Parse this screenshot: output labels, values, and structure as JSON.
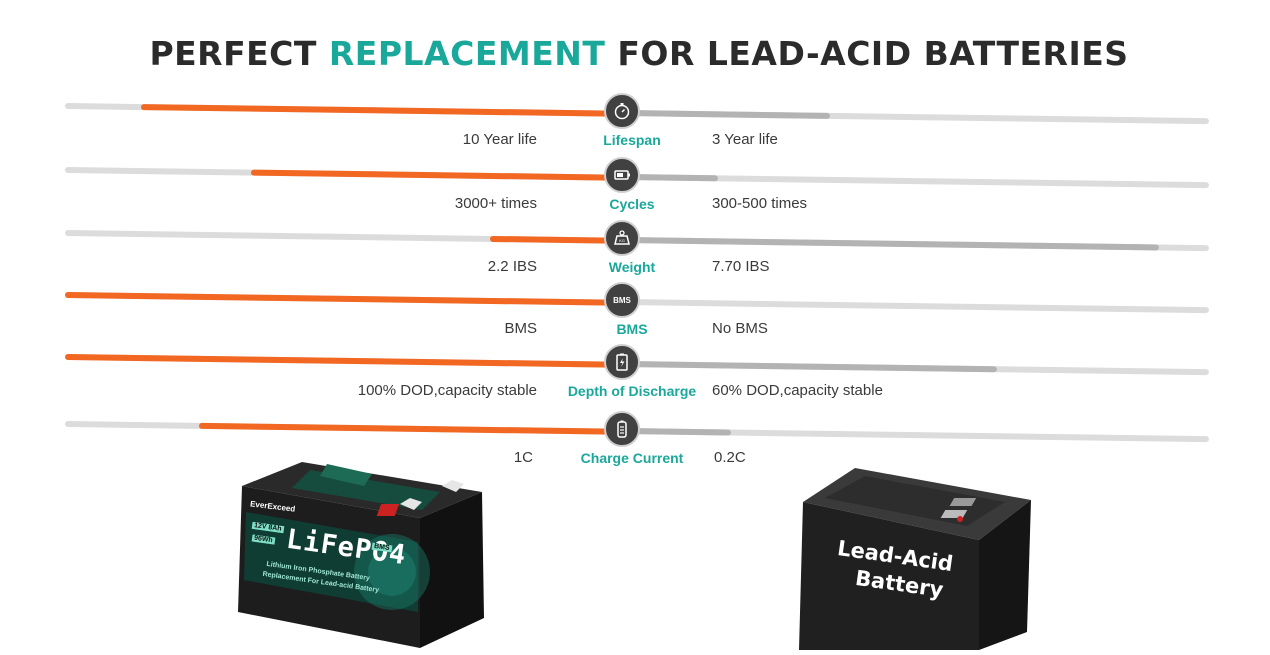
{
  "title": {
    "part1": "PERFECT ",
    "highlight": "REPLACEMENT",
    "part2": " FOR LEAD-ACID BATTERIES"
  },
  "colors": {
    "accent": "#1aa89b",
    "lifepo4": "#f26722",
    "lead_acid": "#b3b3b3",
    "track": "#dcdcdc",
    "title": "#2b2b2b"
  },
  "comparisons": [
    {
      "metric": "Lifespan",
      "left": "10 Year life",
      "right": "3 Year life",
      "icon": "stopwatch-icon"
    },
    {
      "metric": "Cycles",
      "left": "3000+ times",
      "right": "300-500 times",
      "icon": "battery-cycle-icon"
    },
    {
      "metric": "Weight",
      "left": "2.2 IBS",
      "right": "7.70 IBS",
      "icon": "weight-icon"
    },
    {
      "metric": "BMS",
      "left": "BMS",
      "right": "No BMS",
      "icon": "bms-icon",
      "icon_text": "BMS"
    },
    {
      "metric": "Depth of Discharge",
      "left": "100% DOD,capacity stable",
      "right": "60% DOD,capacity stable",
      "icon": "discharge-icon"
    },
    {
      "metric": "Charge Current",
      "left": "1C",
      "right": "0.2C",
      "icon": "charge-battery-icon"
    }
  ],
  "lifepo4_battery": {
    "brand": "EverExceed",
    "spec": "12V 8Ah",
    "energy": "96Wh",
    "chemistry": "LiFePO4",
    "badge": "BMS",
    "line1": "Lithium Iron Phosphate Battery",
    "line2": "Replacement For Lead-acid Battery"
  },
  "lead_acid_battery": {
    "line1": "Lead-Acid",
    "line2": "Battery"
  }
}
